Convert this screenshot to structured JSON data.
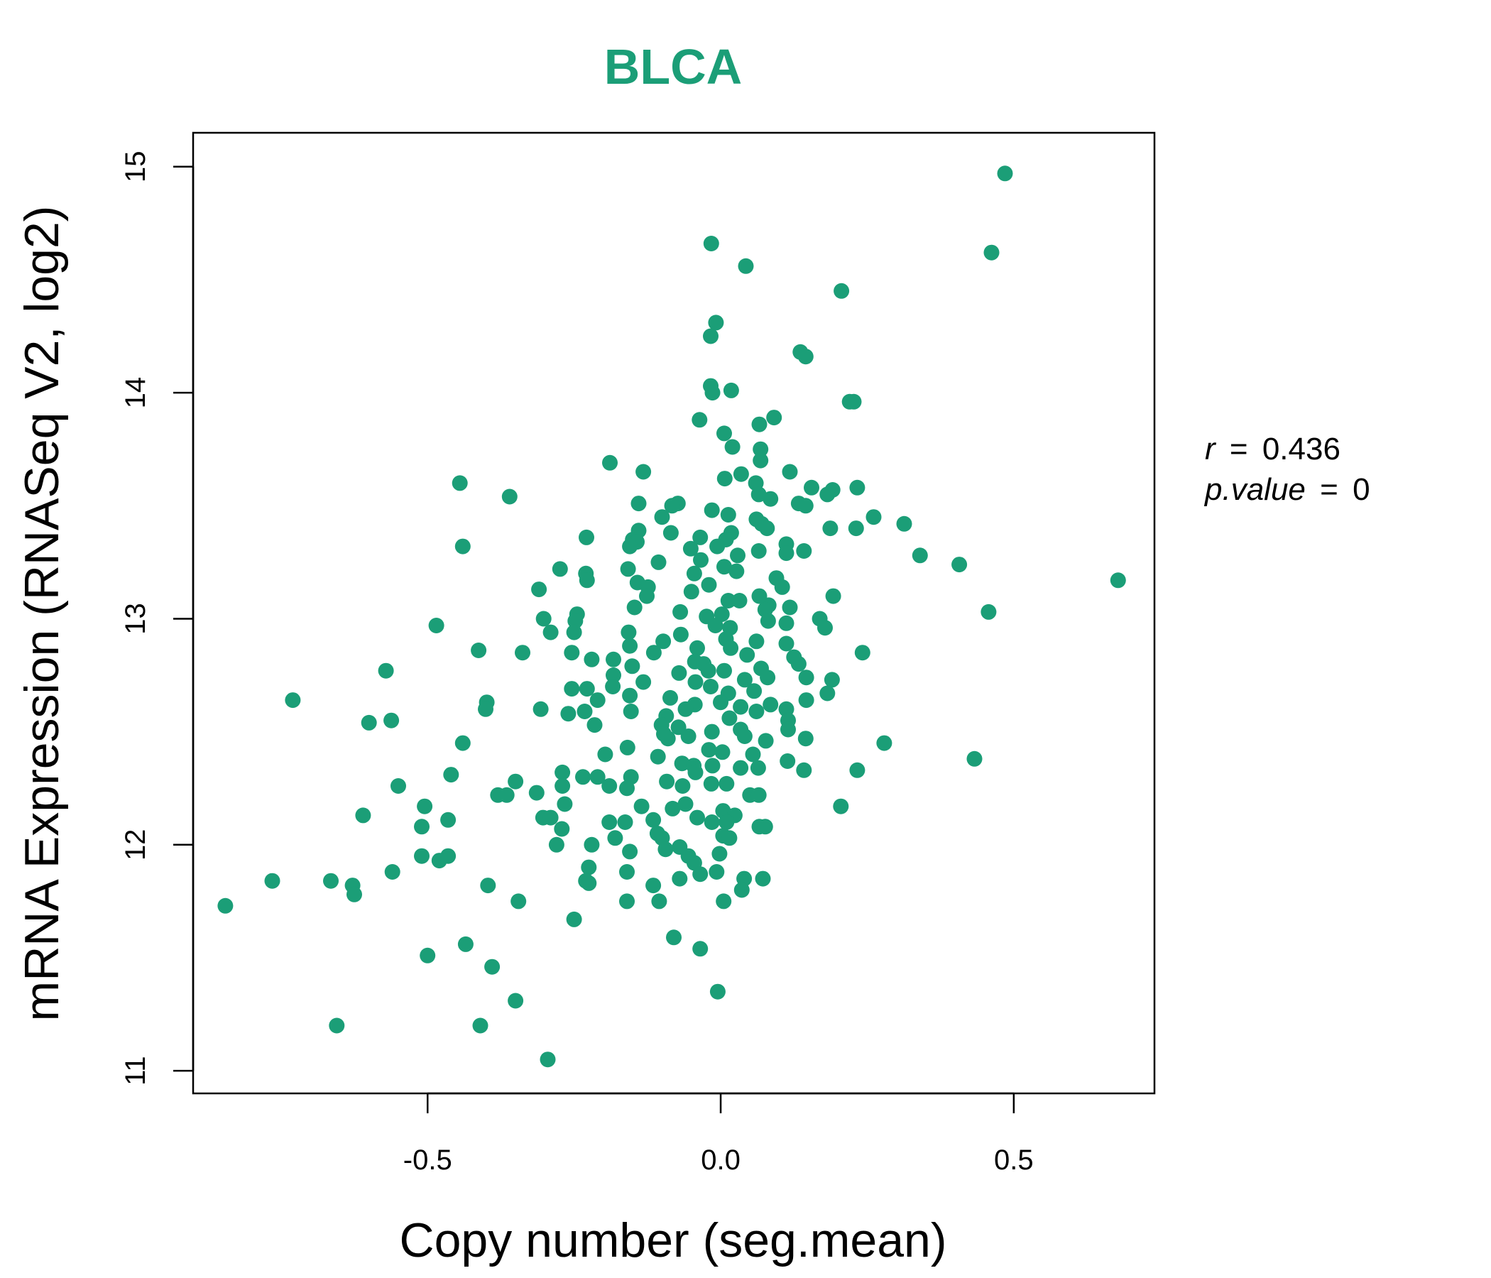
{
  "chart_data": {
    "type": "scatter",
    "title": "BLCA",
    "xlabel": "Copy number (seg.mean)",
    "ylabel": "mRNA Expression (RNASeq V2, log2)",
    "xlim": [
      -0.9,
      0.74
    ],
    "ylim": [
      10.9,
      15.15
    ],
    "xticks": [
      -0.5,
      0.0,
      0.5
    ],
    "xtick_labels": [
      "-0.5",
      "0.0",
      "0.5"
    ],
    "yticks": [
      11,
      12,
      13,
      14,
      15
    ],
    "ytick_labels": [
      "11",
      "12",
      "13",
      "14",
      "15"
    ],
    "grid": false,
    "legend": "none",
    "point_color": "#1b9e77",
    "annotation": {
      "r_label": "r",
      "r_value": "0.436",
      "p_label": "p.value",
      "p_value": "0",
      "equals": "="
    },
    "points": [
      [
        0.485,
        14.97
      ],
      [
        0.462,
        14.62
      ],
      [
        -0.016,
        14.66
      ],
      [
        0.043,
        14.56
      ],
      [
        0.206,
        14.45
      ],
      [
        -0.008,
        14.31
      ],
      [
        -0.017,
        14.25
      ],
      [
        0.136,
        14.18
      ],
      [
        0.145,
        14.16
      ],
      [
        -0.017,
        14.03
      ],
      [
        0.018,
        14.01
      ],
      [
        -0.014,
        14.0
      ],
      [
        0.22,
        13.96
      ],
      [
        0.227,
        13.96
      ],
      [
        -0.036,
        13.88
      ],
      [
        0.091,
        13.89
      ],
      [
        0.066,
        13.86
      ],
      [
        0.006,
        13.82
      ],
      [
        0.02,
        13.76
      ],
      [
        0.068,
        13.75
      ],
      [
        0.068,
        13.7
      ],
      [
        -0.189,
        13.69
      ],
      [
        -0.132,
        13.65
      ],
      [
        0.118,
        13.65
      ],
      [
        0.035,
        13.64
      ],
      [
        0.007,
        13.62
      ],
      [
        0.06,
        13.6
      ],
      [
        -0.445,
        13.6
      ],
      [
        0.155,
        13.58
      ],
      [
        0.191,
        13.57
      ],
      [
        0.233,
        13.58
      ],
      [
        0.065,
        13.55
      ],
      [
        0.085,
        13.53
      ],
      [
        -0.36,
        13.54
      ],
      [
        0.133,
        13.51
      ],
      [
        -0.14,
        13.51
      ],
      [
        -0.073,
        13.51
      ],
      [
        -0.083,
        13.5
      ],
      [
        0.145,
        13.5
      ],
      [
        0.182,
        13.55
      ],
      [
        -0.015,
        13.48
      ],
      [
        0.013,
        13.46
      ],
      [
        -0.1,
        13.45
      ],
      [
        0.061,
        13.44
      ],
      [
        0.261,
        13.45
      ],
      [
        0.07,
        13.42
      ],
      [
        0.079,
        13.4
      ],
      [
        -0.14,
        13.39
      ],
      [
        0.187,
        13.4
      ],
      [
        0.231,
        13.4
      ],
      [
        0.313,
        13.42
      ],
      [
        0.018,
        13.38
      ],
      [
        -0.085,
        13.38
      ],
      [
        -0.15,
        13.35
      ],
      [
        -0.035,
        13.36
      ],
      [
        0.009,
        13.35
      ],
      [
        -0.229,
        13.36
      ],
      [
        -0.143,
        13.34
      ],
      [
        -0.155,
        13.32
      ],
      [
        0.112,
        13.33
      ],
      [
        0.065,
        13.3
      ],
      [
        -0.006,
        13.32
      ],
      [
        -0.44,
        13.32
      ],
      [
        -0.051,
        13.31
      ],
      [
        0.142,
        13.3
      ],
      [
        0.112,
        13.29
      ],
      [
        0.34,
        13.28
      ],
      [
        -0.106,
        13.25
      ],
      [
        -0.034,
        13.26
      ],
      [
        0.029,
        13.28
      ],
      [
        0.407,
        13.24
      ],
      [
        -0.158,
        13.22
      ],
      [
        -0.274,
        13.22
      ],
      [
        0.006,
        13.23
      ],
      [
        0.027,
        13.21
      ],
      [
        -0.045,
        13.2
      ],
      [
        0.678,
        13.17
      ],
      [
        -0.23,
        13.2
      ],
      [
        0.095,
        13.18
      ],
      [
        -0.228,
        13.17
      ],
      [
        -0.142,
        13.16
      ],
      [
        -0.02,
        13.15
      ],
      [
        0.105,
        13.14
      ],
      [
        -0.124,
        13.14
      ],
      [
        -0.31,
        13.13
      ],
      [
        -0.05,
        13.12
      ],
      [
        0.066,
        13.1
      ],
      [
        -0.126,
        13.1
      ],
      [
        0.192,
        13.1
      ],
      [
        0.013,
        13.08
      ],
      [
        0.032,
        13.08
      ],
      [
        0.082,
        13.06
      ],
      [
        0.118,
        13.05
      ],
      [
        0.076,
        13.04
      ],
      [
        -0.147,
        13.05
      ],
      [
        -0.069,
        13.03
      ],
      [
        -0.245,
        13.02
      ],
      [
        0.002,
        13.02
      ],
      [
        0.457,
        13.03
      ],
      [
        -0.302,
        13.0
      ],
      [
        -0.024,
        13.01
      ],
      [
        0.169,
        13.0
      ],
      [
        0.081,
        12.99
      ],
      [
        -0.248,
        12.99
      ],
      [
        0.112,
        12.98
      ],
      [
        -0.009,
        12.97
      ],
      [
        0.016,
        12.96
      ],
      [
        -0.29,
        12.94
      ],
      [
        0.178,
        12.96
      ],
      [
        -0.485,
        12.97
      ],
      [
        -0.157,
        12.94
      ],
      [
        -0.25,
        12.94
      ],
      [
        -0.068,
        12.93
      ],
      [
        0.009,
        12.91
      ],
      [
        -0.098,
        12.9
      ],
      [
        0.061,
        12.9
      ],
      [
        -0.155,
        12.88
      ],
      [
        0.112,
        12.89
      ],
      [
        0.017,
        12.87
      ],
      [
        -0.04,
        12.87
      ],
      [
        -0.254,
        12.85
      ],
      [
        -0.413,
        12.86
      ],
      [
        -0.338,
        12.85
      ],
      [
        -0.114,
        12.85
      ],
      [
        0.242,
        12.85
      ],
      [
        0.045,
        12.84
      ],
      [
        0.125,
        12.83
      ],
      [
        -0.22,
        12.82
      ],
      [
        -0.183,
        12.82
      ],
      [
        -0.044,
        12.81
      ],
      [
        -0.029,
        12.8
      ],
      [
        0.133,
        12.8
      ],
      [
        -0.151,
        12.79
      ],
      [
        0.069,
        12.78
      ],
      [
        0.006,
        12.77
      ],
      [
        -0.021,
        12.77
      ],
      [
        -0.571,
        12.77
      ],
      [
        -0.071,
        12.76
      ],
      [
        0.146,
        12.74
      ],
      [
        -0.183,
        12.75
      ],
      [
        0.08,
        12.74
      ],
      [
        0.041,
        12.73
      ],
      [
        -0.132,
        12.72
      ],
      [
        0.19,
        12.73
      ],
      [
        -0.043,
        12.72
      ],
      [
        -0.228,
        12.69
      ],
      [
        -0.254,
        12.69
      ],
      [
        -0.184,
        12.7
      ],
      [
        -0.017,
        12.7
      ],
      [
        0.057,
        12.68
      ],
      [
        0.013,
        12.67
      ],
      [
        -0.155,
        12.66
      ],
      [
        0.182,
        12.67
      ],
      [
        -0.086,
        12.65
      ],
      [
        -0.21,
        12.64
      ],
      [
        -0.73,
        12.64
      ],
      [
        0.146,
        12.64
      ],
      [
        -0.399,
        12.63
      ],
      [
        0.0,
        12.63
      ],
      [
        -0.044,
        12.62
      ],
      [
        -0.06,
        12.6
      ],
      [
        0.034,
        12.61
      ],
      [
        -0.401,
        12.6
      ],
      [
        0.112,
        12.6
      ],
      [
        0.085,
        12.62
      ],
      [
        0.061,
        12.59
      ],
      [
        -0.232,
        12.59
      ],
      [
        -0.153,
        12.59
      ],
      [
        -0.26,
        12.58
      ],
      [
        -0.307,
        12.6
      ],
      [
        0.015,
        12.56
      ],
      [
        -0.093,
        12.57
      ],
      [
        0.115,
        12.55
      ],
      [
        -0.6,
        12.54
      ],
      [
        -0.562,
        12.55
      ],
      [
        -0.101,
        12.53
      ],
      [
        -0.215,
        12.53
      ],
      [
        -0.072,
        12.52
      ],
      [
        0.034,
        12.51
      ],
      [
        0.115,
        12.51
      ],
      [
        -0.015,
        12.5
      ],
      [
        -0.097,
        12.49
      ],
      [
        -0.055,
        12.48
      ],
      [
        0.041,
        12.48
      ],
      [
        -0.09,
        12.47
      ],
      [
        0.145,
        12.47
      ],
      [
        0.077,
        12.46
      ],
      [
        0.279,
        12.45
      ],
      [
        -0.44,
        12.45
      ],
      [
        -0.159,
        12.43
      ],
      [
        -0.02,
        12.42
      ],
      [
        0.003,
        12.41
      ],
      [
        0.055,
        12.4
      ],
      [
        -0.197,
        12.4
      ],
      [
        -0.107,
        12.39
      ],
      [
        0.433,
        12.38
      ],
      [
        0.114,
        12.37
      ],
      [
        -0.066,
        12.36
      ],
      [
        -0.046,
        12.35
      ],
      [
        -0.014,
        12.35
      ],
      [
        0.034,
        12.34
      ],
      [
        0.064,
        12.34
      ],
      [
        -0.043,
        12.32
      ],
      [
        0.142,
        12.33
      ],
      [
        0.233,
        12.33
      ],
      [
        -0.27,
        12.32
      ],
      [
        -0.235,
        12.3
      ],
      [
        -0.21,
        12.3
      ],
      [
        -0.46,
        12.31
      ],
      [
        -0.153,
        12.3
      ],
      [
        -0.092,
        12.28
      ],
      [
        -0.016,
        12.27
      ],
      [
        0.01,
        12.27
      ],
      [
        -0.35,
        12.28
      ],
      [
        -0.065,
        12.26
      ],
      [
        -0.27,
        12.26
      ],
      [
        -0.19,
        12.26
      ],
      [
        -0.16,
        12.25
      ],
      [
        -0.55,
        12.26
      ],
      [
        -0.314,
        12.23
      ],
      [
        0.05,
        12.22
      ],
      [
        0.065,
        12.22
      ],
      [
        -0.38,
        12.22
      ],
      [
        -0.365,
        12.22
      ],
      [
        -0.06,
        12.18
      ],
      [
        -0.266,
        12.18
      ],
      [
        -0.135,
        12.17
      ],
      [
        -0.505,
        12.17
      ],
      [
        0.205,
        12.17
      ],
      [
        -0.082,
        12.16
      ],
      [
        0.004,
        12.15
      ],
      [
        0.024,
        12.13
      ],
      [
        -0.04,
        12.12
      ],
      [
        -0.303,
        12.12
      ],
      [
        -0.29,
        12.12
      ],
      [
        -0.61,
        12.13
      ],
      [
        -0.115,
        12.11
      ],
      [
        -0.163,
        12.1
      ],
      [
        -0.19,
        12.1
      ],
      [
        -0.465,
        12.11
      ],
      [
        0.01,
        12.1
      ],
      [
        -0.015,
        12.1
      ],
      [
        0.066,
        12.08
      ],
      [
        -0.51,
        12.08
      ],
      [
        0.076,
        12.08
      ],
      [
        -0.271,
        12.07
      ],
      [
        -0.108,
        12.05
      ],
      [
        0.004,
        12.04
      ],
      [
        -0.1,
        12.03
      ],
      [
        0.015,
        12.03
      ],
      [
        -0.18,
        12.03
      ],
      [
        -0.28,
        12.0
      ],
      [
        -0.22,
        12.0
      ],
      [
        -0.07,
        11.99
      ],
      [
        -0.094,
        11.98
      ],
      [
        -0.155,
        11.97
      ],
      [
        -0.002,
        11.96
      ],
      [
        -0.055,
        11.95
      ],
      [
        -0.465,
        11.95
      ],
      [
        -0.51,
        11.95
      ],
      [
        -0.48,
        11.93
      ],
      [
        -0.045,
        11.92
      ],
      [
        -0.225,
        11.9
      ],
      [
        -0.56,
        11.88
      ],
      [
        -0.16,
        11.88
      ],
      [
        -0.035,
        11.87
      ],
      [
        -0.007,
        11.88
      ],
      [
        -0.07,
        11.85
      ],
      [
        0.04,
        11.85
      ],
      [
        0.072,
        11.85
      ],
      [
        -0.225,
        11.83
      ],
      [
        -0.23,
        11.84
      ],
      [
        -0.665,
        11.84
      ],
      [
        -0.765,
        11.84
      ],
      [
        -0.628,
        11.82
      ],
      [
        -0.397,
        11.82
      ],
      [
        -0.115,
        11.82
      ],
      [
        0.036,
        11.8
      ],
      [
        -0.625,
        11.78
      ],
      [
        -0.16,
        11.75
      ],
      [
        -0.105,
        11.75
      ],
      [
        0.005,
        11.75
      ],
      [
        -0.345,
        11.75
      ],
      [
        -0.845,
        11.73
      ],
      [
        -0.25,
        11.67
      ],
      [
        -0.08,
        11.59
      ],
      [
        -0.435,
        11.56
      ],
      [
        -0.035,
        11.54
      ],
      [
        -0.5,
        11.51
      ],
      [
        -0.39,
        11.46
      ],
      [
        -0.005,
        11.35
      ],
      [
        -0.35,
        11.31
      ],
      [
        -0.655,
        11.2
      ],
      [
        -0.41,
        11.2
      ],
      [
        -0.295,
        11.05
      ]
    ]
  }
}
